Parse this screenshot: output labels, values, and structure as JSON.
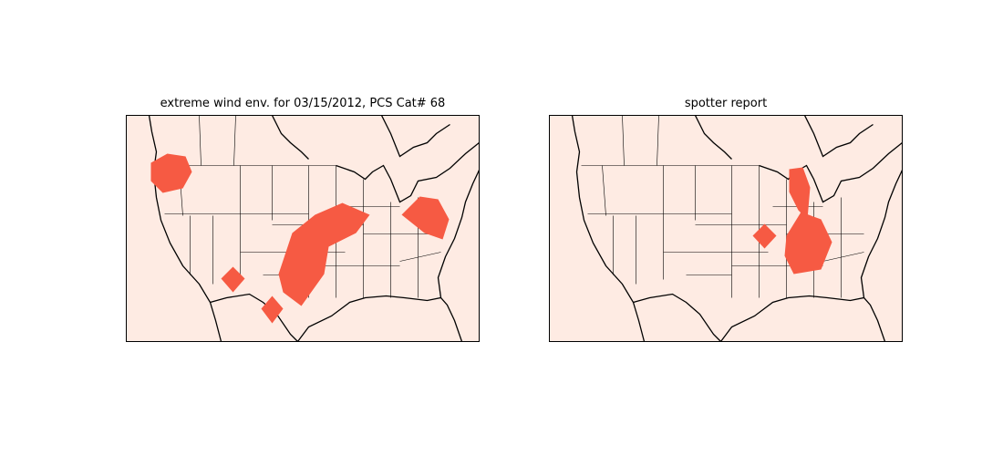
{
  "panels": [
    {
      "title": "extreme wind env. for 03/15/2012, PCS Cat# 68"
    },
    {
      "title": "spotter report"
    }
  ]
}
